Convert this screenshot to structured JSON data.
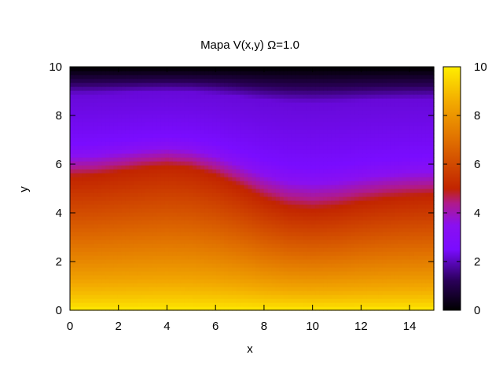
{
  "chart_data": {
    "type": "heatmap",
    "title": "Mapa V(x,y) Ω=1.0",
    "xlabel": "x",
    "ylabel": "y",
    "xlim": [
      0,
      15
    ],
    "ylim": [
      0,
      10
    ],
    "xticks": [
      0,
      2,
      4,
      6,
      8,
      10,
      12,
      14
    ],
    "yticks": [
      0,
      2,
      4,
      6,
      8,
      10
    ],
    "colorbar": {
      "range": [
        0,
        10
      ],
      "ticks": [
        0,
        2,
        4,
        6,
        8,
        10
      ],
      "palette": "black-blue-violet-red-orange-yellow",
      "stops": [
        {
          "value": 0,
          "color": "#000000"
        },
        {
          "value": 1.2,
          "color": "#2a0058"
        },
        {
          "value": 2.5,
          "color": "#7a0cff"
        },
        {
          "value": 3.5,
          "color": "#8a10f0"
        },
        {
          "value": 4.4,
          "color": "#b01a8a"
        },
        {
          "value": 5.0,
          "color": "#c22400"
        },
        {
          "value": 7.0,
          "color": "#e07000"
        },
        {
          "value": 8.5,
          "color": "#f2a800"
        },
        {
          "value": 10,
          "color": "#ffee00"
        }
      ]
    },
    "contour_V5_boundary": {
      "x": [
        0,
        1,
        2,
        3,
        4,
        5,
        6,
        7,
        8,
        9,
        10,
        11,
        12,
        13,
        14,
        15
      ],
      "y": [
        5.5,
        5.55,
        5.7,
        5.85,
        5.95,
        5.85,
        5.55,
        5.1,
        4.6,
        4.25,
        4.15,
        4.25,
        4.45,
        4.6,
        4.7,
        4.75
      ]
    },
    "grid": false,
    "legend": "colorbar-right"
  }
}
